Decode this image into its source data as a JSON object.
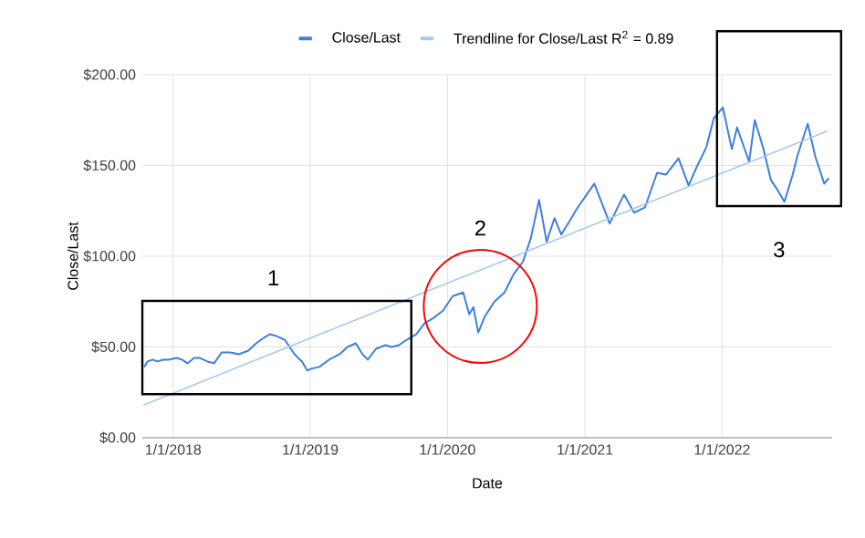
{
  "chart_data": {
    "type": "line",
    "xlabel": "Date",
    "ylabel": "Close/Last",
    "xlim": [
      "2017-10-11",
      "2022-10-21"
    ],
    "ylim": [
      0,
      200
    ],
    "xticks": [
      {
        "value": "2018-01-01",
        "label": "1/1/2018"
      },
      {
        "value": "2019-01-01",
        "label": "1/1/2019"
      },
      {
        "value": "2020-01-01",
        "label": "1/1/2020"
      },
      {
        "value": "2021-01-01",
        "label": "1/1/2021"
      },
      {
        "value": "2022-01-01",
        "label": "1/1/2022"
      }
    ],
    "yticks": [
      {
        "value": 0,
        "label": "$0.00"
      },
      {
        "value": 50,
        "label": "$50.00"
      },
      {
        "value": 100,
        "label": "$100.00"
      },
      {
        "value": 150,
        "label": "$150.00"
      },
      {
        "value": 200,
        "label": "$200.00"
      }
    ],
    "grid": true,
    "legend": "top",
    "marker": "none",
    "line_style": "solid",
    "annotations": [
      "1",
      "2",
      "3"
    ],
    "series": [
      {
        "name": "Close/Last",
        "color": "#3d7fe0",
        "x": [
          "2017-10-16",
          "2017-10-25",
          "2017-11-08",
          "2017-11-20",
          "2017-12-05",
          "2017-12-20",
          "2018-01-10",
          "2018-01-25",
          "2018-02-08",
          "2018-02-26",
          "2018-03-12",
          "2018-04-02",
          "2018-04-20",
          "2018-05-10",
          "2018-06-01",
          "2018-06-25",
          "2018-07-20",
          "2018-08-10",
          "2018-08-30",
          "2018-09-15",
          "2018-10-03",
          "2018-10-25",
          "2018-11-20",
          "2018-12-10",
          "2018-12-24",
          "2019-01-03",
          "2019-01-25",
          "2019-02-20",
          "2019-03-20",
          "2019-04-10",
          "2019-05-02",
          "2019-05-20",
          "2019-06-03",
          "2019-06-25",
          "2019-07-20",
          "2019-08-05",
          "2019-08-25",
          "2019-09-15",
          "2019-10-10",
          "2019-11-01",
          "2019-11-25",
          "2019-12-20",
          "2020-01-15",
          "2020-02-12",
          "2020-02-28",
          "2020-03-10",
          "2020-03-23",
          "2020-04-10",
          "2020-05-05",
          "2020-06-01",
          "2020-06-25",
          "2020-07-20",
          "2020-08-10",
          "2020-09-01",
          "2020-09-21",
          "2020-10-12",
          "2020-10-30",
          "2020-11-20",
          "2020-12-10",
          "2021-01-26",
          "2021-03-08",
          "2021-04-15",
          "2021-05-12",
          "2021-06-10",
          "2021-07-12",
          "2021-08-05",
          "2021-09-07",
          "2021-10-04",
          "2021-10-25",
          "2021-11-20",
          "2021-12-10",
          "2022-01-03",
          "2022-01-27",
          "2022-02-10",
          "2022-03-14",
          "2022-03-29",
          "2022-04-20",
          "2022-05-11",
          "2022-05-27",
          "2022-06-16",
          "2022-07-08",
          "2022-07-20",
          "2022-08-17",
          "2022-09-06",
          "2022-09-30",
          "2022-10-12"
        ],
        "values": [
          39,
          42,
          43,
          42,
          43,
          43,
          44,
          43,
          41,
          44,
          44,
          42,
          41,
          47,
          47,
          46,
          48,
          52,
          55,
          57,
          56,
          54,
          46,
          42,
          37,
          38,
          39,
          43,
          46,
          50,
          52,
          46,
          43,
          49,
          51,
          50,
          51,
          54,
          57,
          63,
          66,
          70,
          78,
          80,
          68,
          72,
          58,
          67,
          75,
          80,
          90,
          97,
          110,
          131,
          108,
          121,
          112,
          119,
          126,
          140,
          118,
          134,
          124,
          127,
          146,
          145,
          154,
          139,
          149,
          160,
          176,
          182,
          159,
          171,
          152,
          175,
          160,
          142,
          137,
          130,
          145,
          155,
          173,
          155,
          140,
          143
        ]
      },
      {
        "name": "Trendline for Close/Last R$^{2}$ = 0.89",
        "color": "#a9c8f0",
        "x": [
          "2017-10-14",
          "2022-10-08"
        ],
        "values": [
          18,
          169
        ]
      }
    ]
  }
}
